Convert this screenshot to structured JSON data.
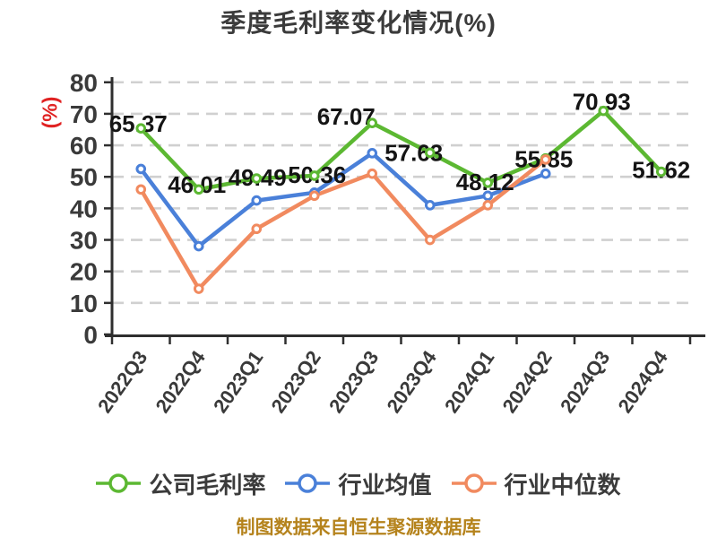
{
  "page": {
    "title": "季度毛利率变化情况(%)",
    "y_axis_unit": "(%)",
    "footer": "制图数据来自恒生聚源数据库"
  },
  "chart_data": {
    "type": "line",
    "title": "季度毛利率变化情况(%)",
    "ylabel": "(%)",
    "xlabel": "",
    "categories": [
      "2022Q3",
      "2022Q4",
      "2023Q1",
      "2023Q2",
      "2023Q3",
      "2023Q4",
      "2024Q1",
      "2024Q2",
      "2024Q3",
      "2024Q4"
    ],
    "series": [
      {
        "name": "公司毛利率",
        "color": "#5cb832",
        "data_labels": true,
        "values": [
          65.37,
          46.01,
          49.49,
          50.36,
          67.07,
          57.63,
          48.12,
          55.85,
          70.93,
          51.62
        ]
      },
      {
        "name": "行业均值",
        "color": "#4a80d9",
        "data_labels": false,
        "values": [
          52.5,
          28,
          42.5,
          45,
          57.5,
          41,
          44,
          51,
          null,
          null
        ]
      },
      {
        "name": "行业中位数",
        "color": "#f18a5f",
        "data_labels": false,
        "values": [
          46,
          14.5,
          33.5,
          44,
          51,
          30,
          41,
          55.5,
          null,
          null
        ]
      }
    ],
    "ylim": [
      0,
      80
    ],
    "yticks": [
      0,
      10,
      20,
      30,
      40,
      50,
      60,
      70,
      80
    ],
    "grid": true,
    "legend_position": "bottom",
    "footer": "制图数据来自恒生聚源数据库",
    "style": {
      "grid_color": "#d0d0d0",
      "axis_color": "#2f2f2f",
      "tick_text_color": "#3a3a3a",
      "label_text_color": "#141414",
      "title_color": "#3b3b3b",
      "unit_color": "#e02222",
      "footer_color": "#b5831d",
      "marker_fill": "#ffffff"
    }
  }
}
